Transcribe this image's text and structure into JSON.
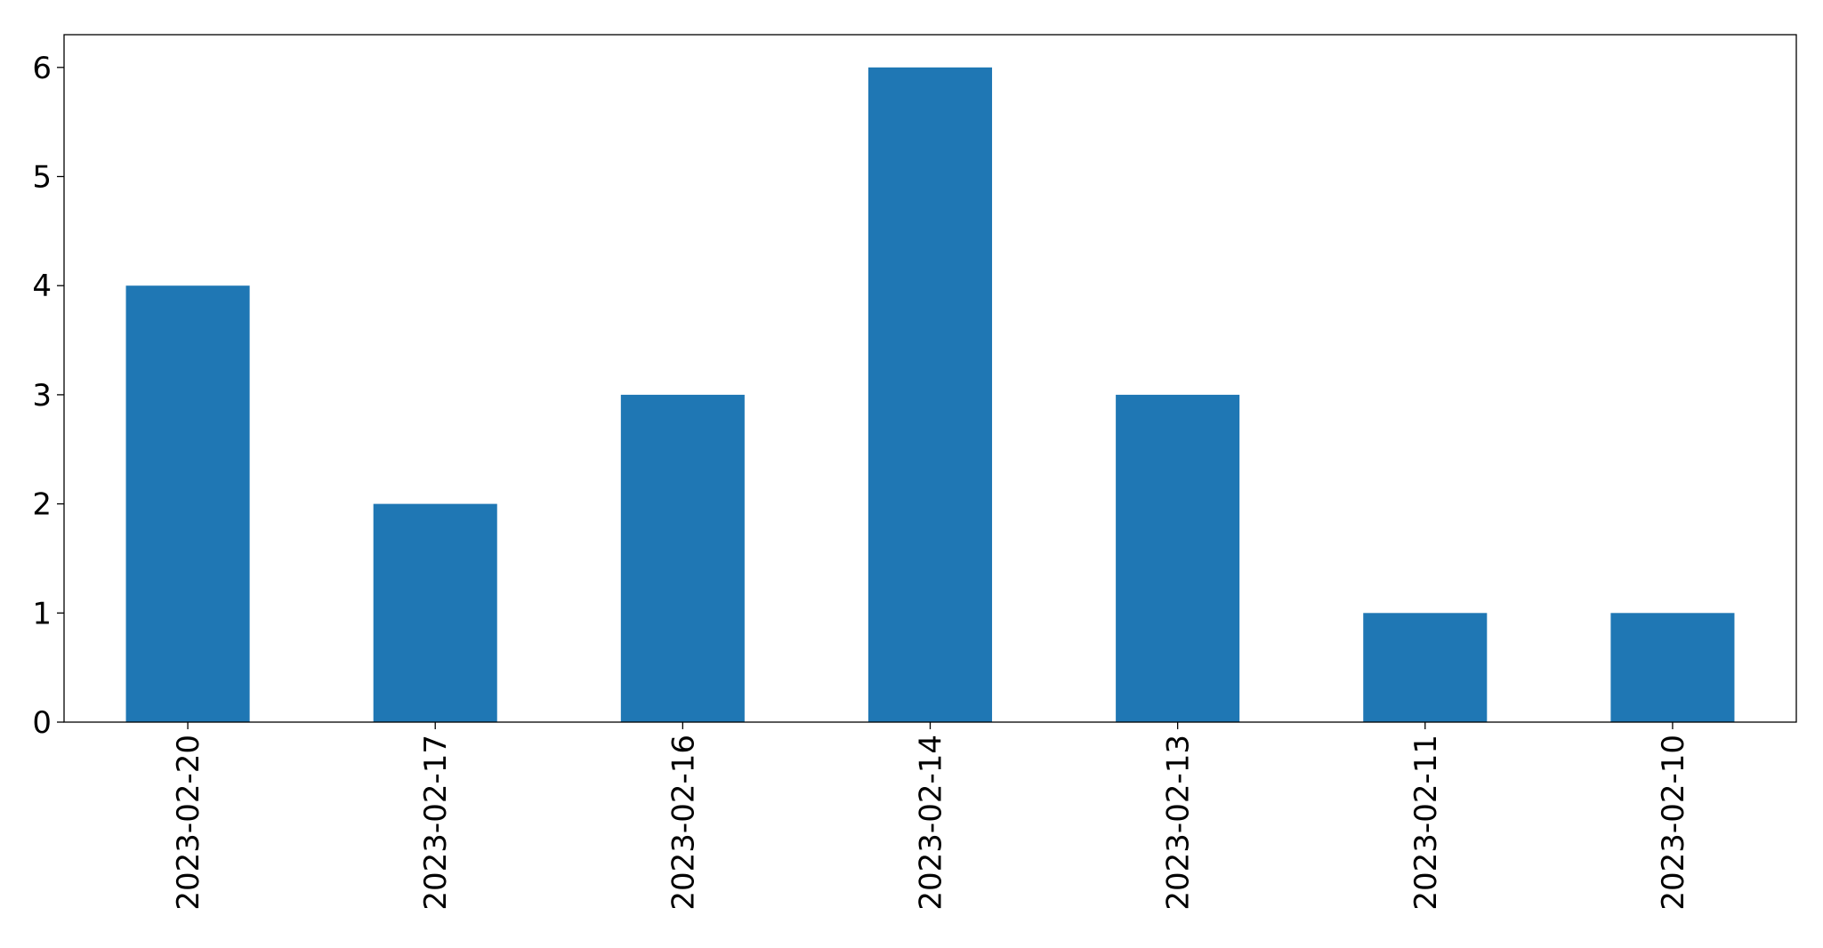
{
  "chart_data": {
    "type": "bar",
    "title": "",
    "xlabel": "",
    "ylabel": "",
    "categories": [
      "2023-02-20",
      "2023-02-17",
      "2023-02-16",
      "2023-02-14",
      "2023-02-13",
      "2023-02-11",
      "2023-02-10"
    ],
    "values": [
      4,
      2,
      3,
      6,
      3,
      1,
      1
    ],
    "ylim": [
      0,
      6.3
    ],
    "yticks": [
      0,
      1,
      2,
      3,
      4,
      5,
      6
    ],
    "grid": false,
    "bar_color": "#1f77b4"
  }
}
